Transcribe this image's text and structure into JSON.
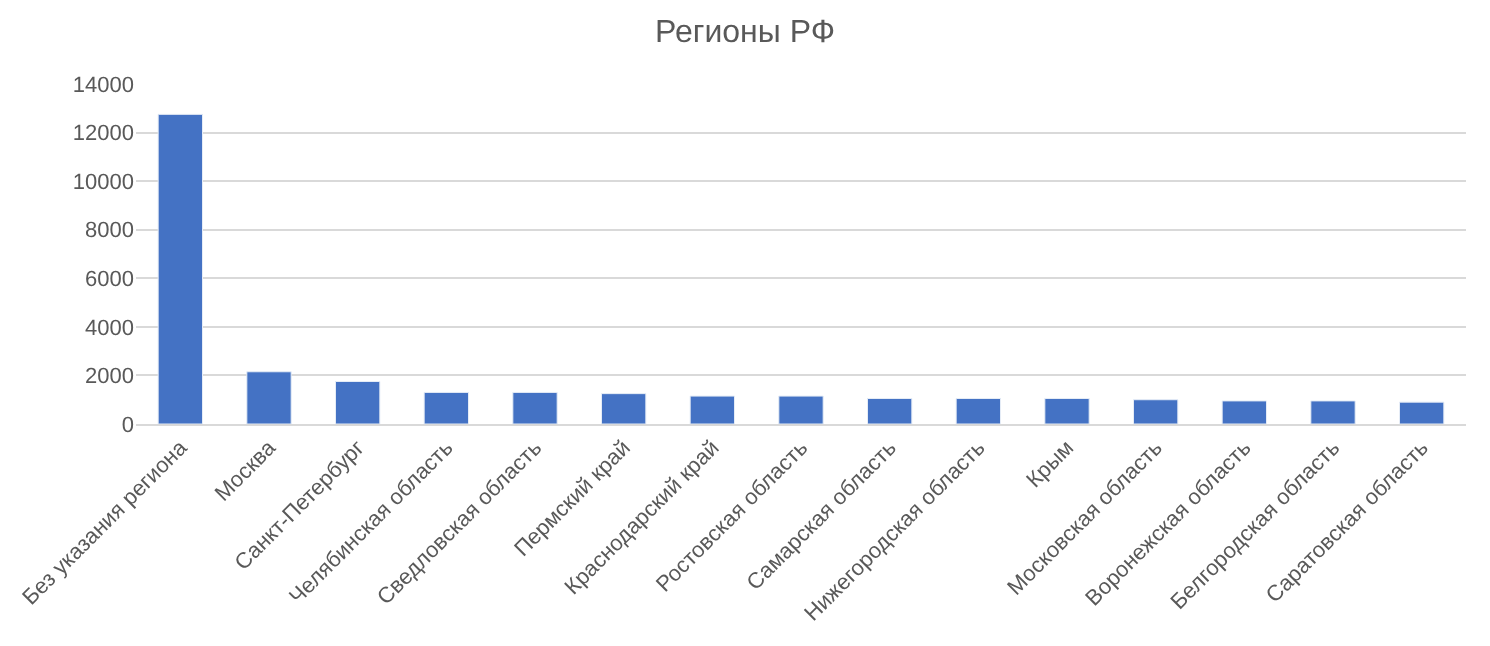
{
  "chart_data": {
    "type": "bar",
    "title": "Регионы РФ",
    "categories": [
      "Без указания региона",
      "Москва",
      "Санкт-Петербург",
      "Челябинская область",
      "Сведловская область",
      "Пермский край",
      "Краснодарский край",
      "Ростовская область",
      "Самарская область",
      "Нижегородская область",
      "Крым",
      "Московская область",
      "Воронежская область",
      "Белгородская область",
      "Саратовская область"
    ],
    "values": [
      12750,
      2150,
      1750,
      1300,
      1300,
      1250,
      1150,
      1150,
      1050,
      1050,
      1050,
      1000,
      950,
      950,
      900
    ],
    "color": "#4472c4",
    "ylim": [
      0,
      14000
    ],
    "yticks": [
      0,
      2000,
      4000,
      6000,
      8000,
      10000,
      12000,
      14000
    ],
    "grid": "y",
    "legend": false
  }
}
